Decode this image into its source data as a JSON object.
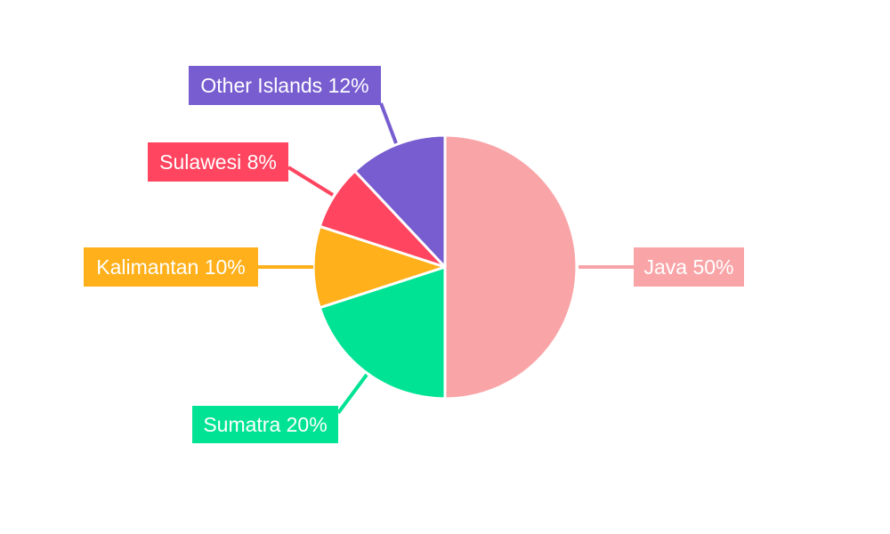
{
  "chart_data": {
    "type": "pie",
    "start": "12 o'clock",
    "direction": "clockwise",
    "slices": [
      {
        "label": "Java",
        "value": 50,
        "color": "#f9a5a8"
      },
      {
        "label": "Sumatra",
        "value": 20,
        "color": "#00e394"
      },
      {
        "label": "Kalimantan",
        "value": 10,
        "color": "#ffb01a"
      },
      {
        "label": "Sulawesi",
        "value": 8,
        "color": "#ff4560"
      },
      {
        "label": "Other Islands",
        "value": 12,
        "color": "#775dd0"
      }
    ],
    "data_labels": [
      "Java 50%",
      "Sumatra 20%",
      "Kalimantan 10%",
      "Sulawesi 8%",
      "Other Islands 12%"
    ]
  }
}
